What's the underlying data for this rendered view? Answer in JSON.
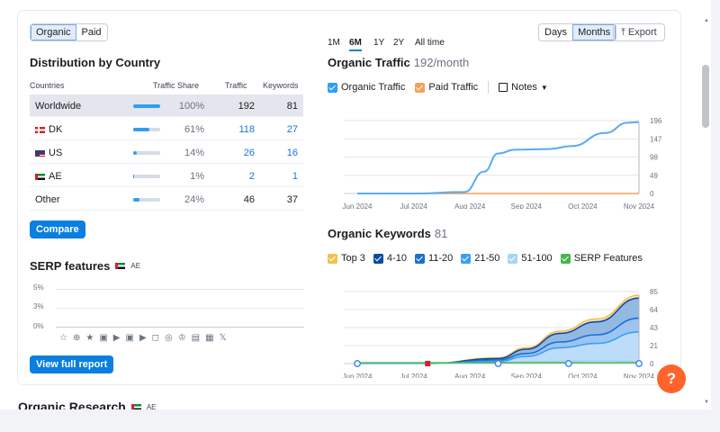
{
  "filter": {
    "organic": "Organic",
    "paid": "Paid"
  },
  "dist": {
    "title": "Distribution by Country",
    "headers": [
      "Countries",
      "Traffic Share",
      "Traffic",
      "Keywords"
    ],
    "rows": [
      {
        "name": "Worldwide",
        "share": "100%",
        "traffic": "192",
        "keywords": "81",
        "fill": 1.0
      },
      {
        "name": "DK",
        "share": "61%",
        "traffic": "118",
        "keywords": "27",
        "fill": 0.61
      },
      {
        "name": "US",
        "share": "14%",
        "traffic": "26",
        "keywords": "16",
        "fill": 0.14
      },
      {
        "name": "AE",
        "share": "1%",
        "traffic": "2",
        "keywords": "1",
        "fill": 0.01
      },
      {
        "name": "Other",
        "share": "24%",
        "traffic": "46",
        "keywords": "37",
        "fill": 0.24
      }
    ],
    "compare": "Compare"
  },
  "serp": {
    "title": "SERP features",
    "country": "AE",
    "ticks": [
      "5%",
      "3%",
      "0%"
    ],
    "icons": [
      "☆",
      "⊕",
      "★",
      "▣",
      "▶",
      "▣",
      "▶",
      "◻",
      "◎",
      "♔",
      "▤",
      "▦",
      "𝕏"
    ],
    "full_report": "View full report"
  },
  "periods": [
    "1M",
    "6M",
    "1Y",
    "2Y",
    "All time"
  ],
  "granularity": {
    "days": "Days",
    "months": "Months"
  },
  "export": "Export",
  "traffic": {
    "title": "Organic Traffic",
    "sub": "192/month",
    "legend": {
      "organic": "Organic Traffic",
      "paid": "Paid Traffic",
      "notes": "Notes"
    },
    "yticks": [
      "196",
      "147",
      "98",
      "49",
      "0"
    ],
    "xticks": [
      "Jun 2024",
      "Jul 2024",
      "Aug 2024",
      "Sep 2024",
      "Oct 2024",
      "Nov 2024"
    ]
  },
  "keywords": {
    "title": "Organic Keywords",
    "sub": "81",
    "legend": [
      "Top 3",
      "4-10",
      "11-20",
      "21-50",
      "51-100",
      "SERP Features"
    ],
    "legend_colors": [
      "#f5bf4f",
      "#0d4aa0",
      "#1b6fd6",
      "#3b9ff0",
      "#a7d3fa",
      "#45b84c"
    ],
    "yticks": [
      "85",
      "64",
      "43",
      "21",
      "0"
    ],
    "xticks": [
      "Jun 2024",
      "Jul 2024",
      "Aug 2024",
      "Sep 2024",
      "Oct 2024",
      "Nov 2024"
    ]
  },
  "next_section": {
    "title": "Organic Research",
    "country": "AE"
  },
  "help": "?",
  "colors": {
    "accent": "#0a7fe0",
    "organic": "#2e9ef5",
    "paid": "#f4a259",
    "help": "#ff642d"
  }
}
